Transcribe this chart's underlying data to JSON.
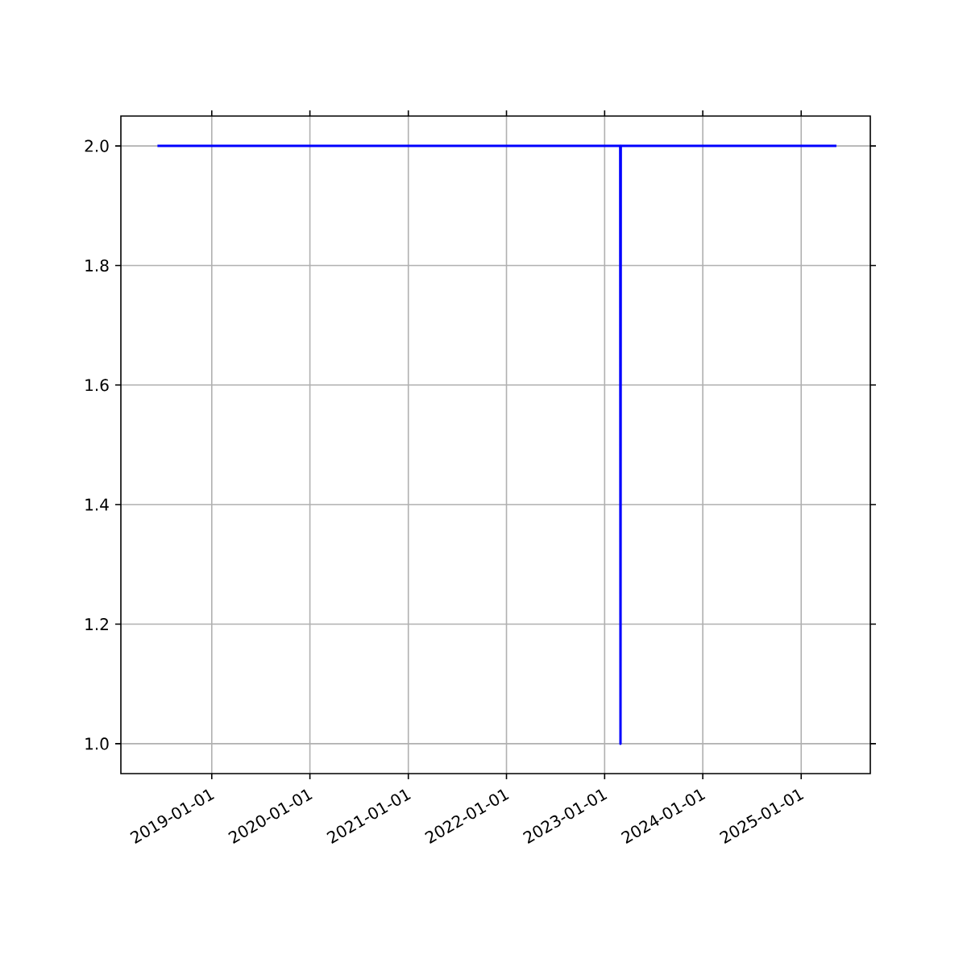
{
  "chart_data": {
    "type": "line",
    "x": [
      "2018-06-13",
      "2023-02-28",
      "2023-03-01",
      "2023-03-02",
      "2025-05-12"
    ],
    "values": [
      2,
      2,
      1,
      2,
      2
    ],
    "color": "#0000ff",
    "xlim": [
      "2018-01-28",
      "2025-09-15"
    ],
    "ylim": [
      0.95,
      2.05
    ],
    "xticks": [
      "2019-01-01",
      "2020-01-01",
      "2021-01-01",
      "2022-01-01",
      "2023-01-01",
      "2024-01-01",
      "2025-01-01"
    ],
    "yticks": [
      {
        "value": 1.0,
        "label": "1.0"
      },
      {
        "value": 1.2,
        "label": "1.2"
      },
      {
        "value": 1.4,
        "label": "1.4"
      },
      {
        "value": 1.6,
        "label": "1.6"
      },
      {
        "value": 1.8,
        "label": "1.8"
      },
      {
        "value": 2.0,
        "label": "2.0"
      }
    ],
    "grid": true
  }
}
